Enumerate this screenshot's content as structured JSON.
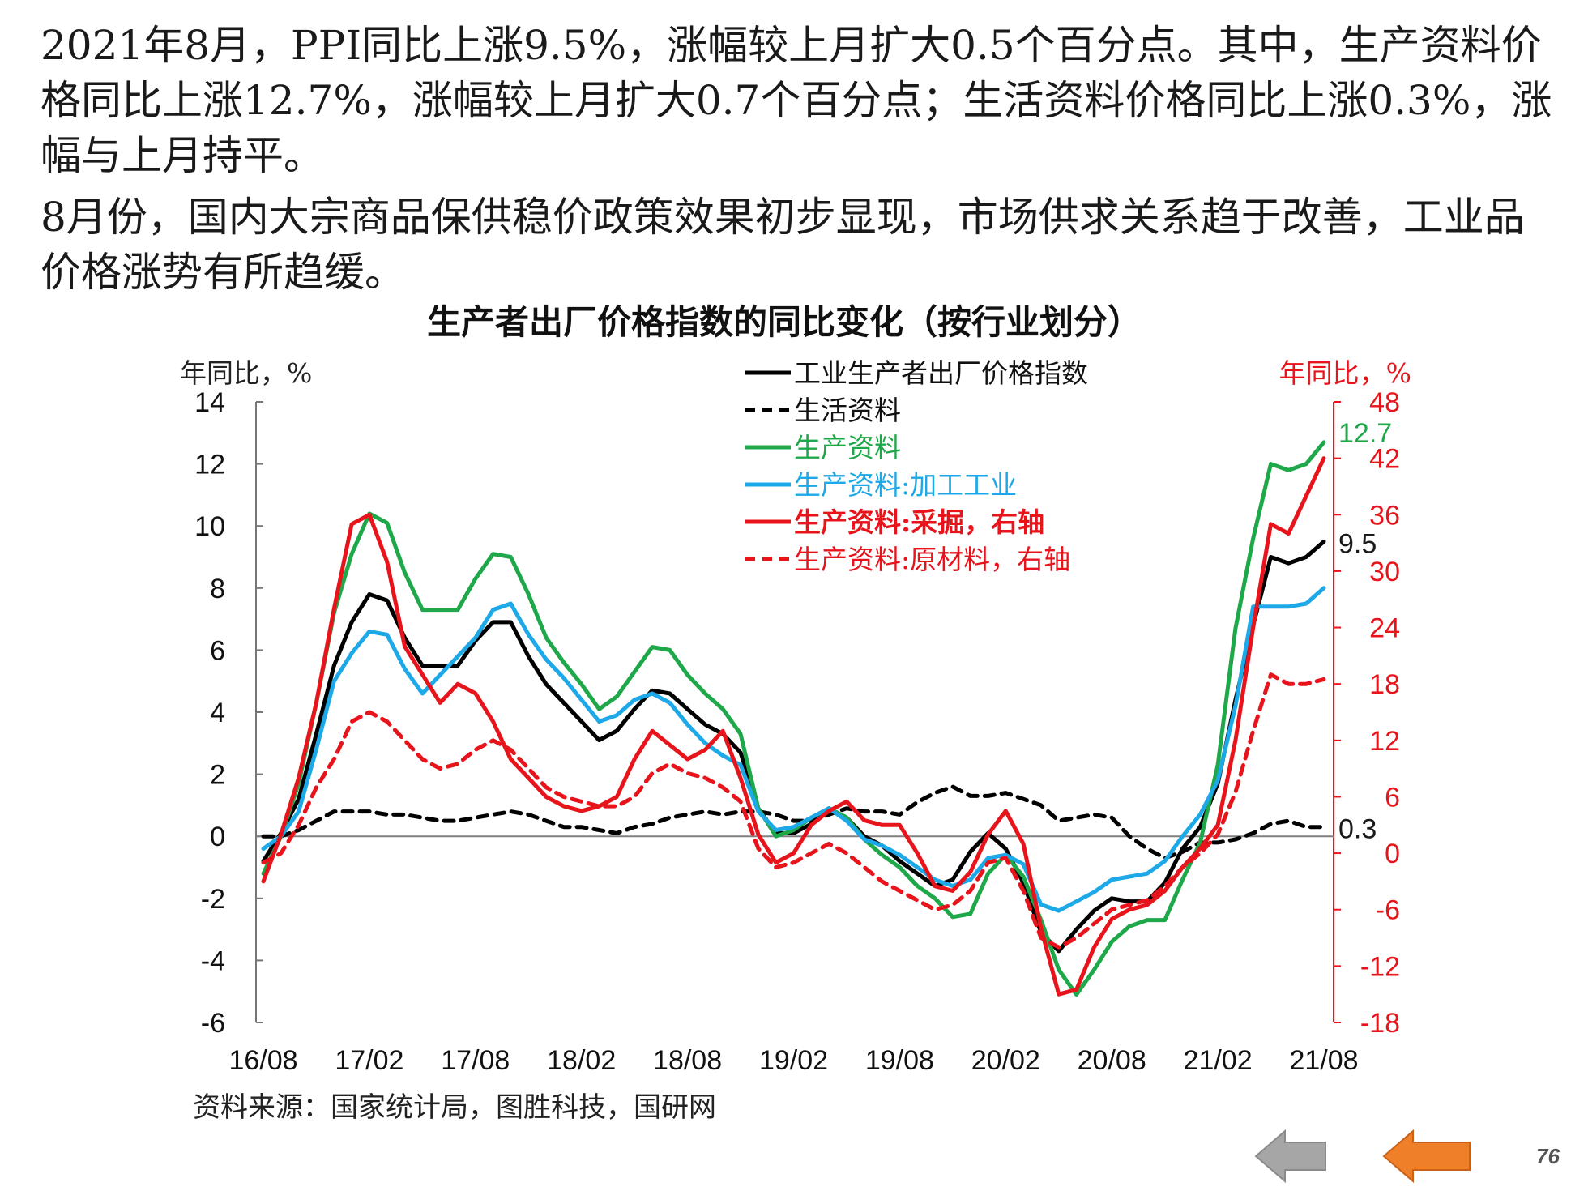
{
  "text": {
    "paragraph1": "2021年8月，PPI同比上涨9.5%，涨幅较上月扩大0.5个百分点。其中，生产资料价格同比上涨12.7%，涨幅较上月扩大0.7个百分点；生活资料价格同比上涨0.3%，涨幅与上月持平。",
    "paragraph2": "8月份，国内大宗商品保供稳价政策效果初步显现，市场供求关系趋于改善，工业品价格涨势有所趋缓。",
    "source": "资料来源：国家统计局，图胜科技，国研网",
    "page_number": "76"
  },
  "nav": {
    "prev_icon": "arrow-left-gray-icon",
    "next_icon": "arrow-left-orange-icon",
    "prev_color": "#A6A6A6",
    "next_color": "#F07F2A"
  },
  "chart_data": {
    "type": "line",
    "title": "生产者出厂价格指数的同比变化（按行业划分）",
    "ylabel_left": "年同比，%",
    "ylabel_right": "年同比，%",
    "ylim_left": [
      -6,
      14
    ],
    "ylim_right": [
      -18,
      48
    ],
    "yticks_left": [
      "14",
      "12",
      "10",
      "8",
      "6",
      "4",
      "2",
      "0",
      "-2",
      "-4",
      "-6"
    ],
    "yticks_right": [
      "48",
      "42",
      "36",
      "30",
      "24",
      "18",
      "12",
      "6",
      "0",
      "-6",
      "-12",
      "-18"
    ],
    "xticks": [
      "16/08",
      "17/02",
      "17/08",
      "18/02",
      "18/08",
      "19/02",
      "19/08",
      "20/02",
      "20/08",
      "21/02",
      "21/08"
    ],
    "x": [
      "16/08",
      "16/09",
      "16/10",
      "16/11",
      "16/12",
      "17/01",
      "17/02",
      "17/03",
      "17/04",
      "17/05",
      "17/06",
      "17/07",
      "17/08",
      "17/09",
      "17/10",
      "17/11",
      "17/12",
      "18/01",
      "18/02",
      "18/03",
      "18/04",
      "18/05",
      "18/06",
      "18/07",
      "18/08",
      "18/09",
      "18/10",
      "18/11",
      "18/12",
      "19/01",
      "19/02",
      "19/03",
      "19/04",
      "19/05",
      "19/06",
      "19/07",
      "19/08",
      "19/09",
      "19/10",
      "19/11",
      "19/12",
      "20/01",
      "20/02",
      "20/03",
      "20/04",
      "20/05",
      "20/06",
      "20/07",
      "20/08",
      "20/09",
      "20/10",
      "20/11",
      "20/12",
      "21/01",
      "21/02",
      "21/03",
      "21/04",
      "21/05",
      "21/06",
      "21/07",
      "21/08"
    ],
    "annotations": [
      {
        "text": "12.7",
        "series": "生产资料",
        "color": "#1EA84A"
      },
      {
        "text": "9.5",
        "series": "工业生产者出厂价格指数",
        "color": "#1a1a1a"
      },
      {
        "text": "0.3",
        "series": "生活资料",
        "color": "#1a1a1a"
      }
    ],
    "series": [
      {
        "name": "工业生产者出厂价格指数",
        "color": "#000000",
        "dash": false,
        "axis": "left",
        "values": [
          -0.8,
          0.1,
          1.2,
          3.3,
          5.5,
          6.9,
          7.8,
          7.6,
          6.4,
          5.5,
          5.5,
          5.5,
          6.3,
          6.9,
          6.9,
          5.8,
          4.9,
          4.3,
          3.7,
          3.1,
          3.4,
          4.1,
          4.7,
          4.6,
          4.1,
          3.6,
          3.3,
          2.7,
          0.9,
          0.1,
          0.1,
          0.4,
          0.9,
          0.6,
          0.0,
          -0.3,
          -0.8,
          -1.2,
          -1.6,
          -1.4,
          -0.5,
          0.1,
          -0.4,
          -1.5,
          -3.1,
          -3.7,
          -3.0,
          -2.4,
          -2.0,
          -2.1,
          -2.1,
          -1.5,
          -0.4,
          0.3,
          1.7,
          4.4,
          6.8,
          9.0,
          8.8,
          9.0,
          9.5
        ]
      },
      {
        "name": "生活资料",
        "color": "#000000",
        "dash": true,
        "axis": "left",
        "values": [
          0.0,
          0.0,
          0.2,
          0.5,
          0.8,
          0.8,
          0.8,
          0.7,
          0.7,
          0.6,
          0.5,
          0.5,
          0.6,
          0.7,
          0.8,
          0.7,
          0.5,
          0.3,
          0.3,
          0.2,
          0.1,
          0.3,
          0.4,
          0.6,
          0.7,
          0.8,
          0.7,
          0.8,
          0.8,
          0.7,
          0.5,
          0.5,
          0.7,
          0.9,
          0.8,
          0.8,
          0.7,
          1.1,
          1.4,
          1.6,
          1.3,
          1.3,
          1.4,
          1.2,
          1.0,
          0.5,
          0.6,
          0.7,
          0.6,
          0.0,
          -0.4,
          -0.7,
          -0.5,
          -0.2,
          -0.2,
          -0.1,
          0.1,
          0.4,
          0.5,
          0.3,
          0.3
        ]
      },
      {
        "name": "生产资料",
        "color": "#1EA84A",
        "dash": false,
        "axis": "left",
        "values": [
          -1.2,
          0.0,
          1.7,
          4.3,
          7.2,
          9.1,
          10.4,
          10.1,
          8.5,
          7.3,
          7.3,
          7.3,
          8.3,
          9.1,
          9.0,
          7.8,
          6.4,
          5.6,
          4.9,
          4.1,
          4.5,
          5.3,
          6.1,
          6.0,
          5.2,
          4.6,
          4.1,
          3.3,
          0.9,
          0.0,
          0.2,
          0.6,
          0.9,
          0.6,
          -0.1,
          -0.6,
          -1.0,
          -1.6,
          -2.0,
          -2.6,
          -2.5,
          -1.2,
          -0.6,
          -1.3,
          -2.7,
          -4.3,
          -5.1,
          -4.3,
          -3.4,
          -2.9,
          -2.7,
          -2.7,
          -1.4,
          -0.2,
          2.3,
          6.7,
          9.6,
          12.0,
          11.8,
          12.0,
          12.7
        ]
      },
      {
        "name": "生产资料:加工工业",
        "color": "#1DA8E8",
        "dash": false,
        "axis": "left",
        "values": [
          -0.4,
          0.0,
          0.8,
          2.8,
          5.0,
          5.9,
          6.6,
          6.5,
          5.4,
          4.6,
          5.2,
          5.8,
          6.4,
          7.3,
          7.5,
          6.5,
          5.7,
          5.1,
          4.4,
          3.7,
          3.9,
          4.4,
          4.6,
          4.3,
          3.6,
          3.0,
          2.6,
          2.3,
          0.8,
          0.2,
          0.3,
          0.6,
          0.9,
          0.5,
          -0.1,
          -0.3,
          -0.6,
          -1.0,
          -1.4,
          -1.6,
          -1.4,
          -0.7,
          -0.6,
          -0.9,
          -2.2,
          -2.4,
          -2.1,
          -1.8,
          -1.4,
          -1.3,
          -1.2,
          -0.8,
          0.0,
          0.7,
          1.8,
          4.2,
          7.4,
          7.4,
          7.4,
          7.5,
          8.0
        ]
      },
      {
        "name": "生产资料:采掘，右轴",
        "color": "#E8141C",
        "dash": false,
        "axis": "right",
        "values": [
          -3.0,
          2.0,
          8.0,
          16.0,
          26.0,
          35.0,
          36.0,
          31.0,
          22.0,
          19.0,
          16.0,
          18.0,
          17.0,
          14.0,
          10.0,
          8.0,
          6.0,
          5.0,
          4.5,
          5.0,
          6.0,
          10.0,
          13.0,
          11.5,
          10.0,
          11.0,
          13.0,
          8.0,
          2.0,
          -1.0,
          0.0,
          3.0,
          4.5,
          5.5,
          3.5,
          3.0,
          3.0,
          0.0,
          -3.5,
          -4.0,
          -2.0,
          2.0,
          4.5,
          1.0,
          -8.0,
          -15.0,
          -14.5,
          -10.0,
          -7.0,
          -6.0,
          -5.5,
          -4.0,
          -1.5,
          0.5,
          3.0,
          12.0,
          24.0,
          35.0,
          34.0,
          38.0,
          42.0
        ]
      },
      {
        "name": "生产资料:原材料，右轴",
        "color": "#E8141C",
        "dash": true,
        "axis": "right",
        "values": [
          -1.0,
          0.0,
          3.0,
          7.0,
          10.0,
          14.0,
          15.0,
          14.0,
          12.0,
          10.0,
          9.0,
          9.5,
          11.0,
          12.0,
          11.0,
          9.0,
          7.0,
          6.0,
          5.5,
          5.0,
          5.0,
          6.0,
          8.5,
          9.5,
          8.5,
          8.0,
          7.0,
          5.5,
          0.5,
          -1.5,
          -1.0,
          0.0,
          1.0,
          0.0,
          -1.5,
          -3.0,
          -4.0,
          -5.0,
          -6.0,
          -5.5,
          -4.0,
          -1.0,
          -0.5,
          -4.0,
          -9.0,
          -10.0,
          -9.0,
          -7.5,
          -6.0,
          -5.5,
          -5.0,
          -3.5,
          -1.5,
          0.0,
          2.0,
          6.5,
          13.0,
          19.0,
          18.0,
          18.0,
          18.5
        ]
      }
    ]
  }
}
